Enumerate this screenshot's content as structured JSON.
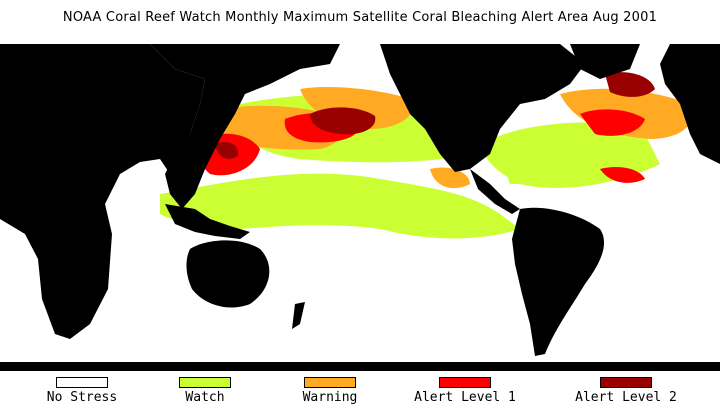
{
  "title": "NOAA Coral Reef Watch Monthly Maximum Satellite Coral Bleaching Alert Area   Aug 2001",
  "legend": [
    {
      "label": "No Stress",
      "color": "#ffffff"
    },
    {
      "label": "Watch",
      "color": "#ccff33"
    },
    {
      "label": "Warning",
      "color": "#ffaa22"
    },
    {
      "label": "Alert Level 1",
      "color": "#ff0000"
    },
    {
      "label": "Alert Level 2",
      "color": "#990000"
    }
  ],
  "colors": {
    "land": "#000000",
    "ocean": "#ffffff"
  }
}
